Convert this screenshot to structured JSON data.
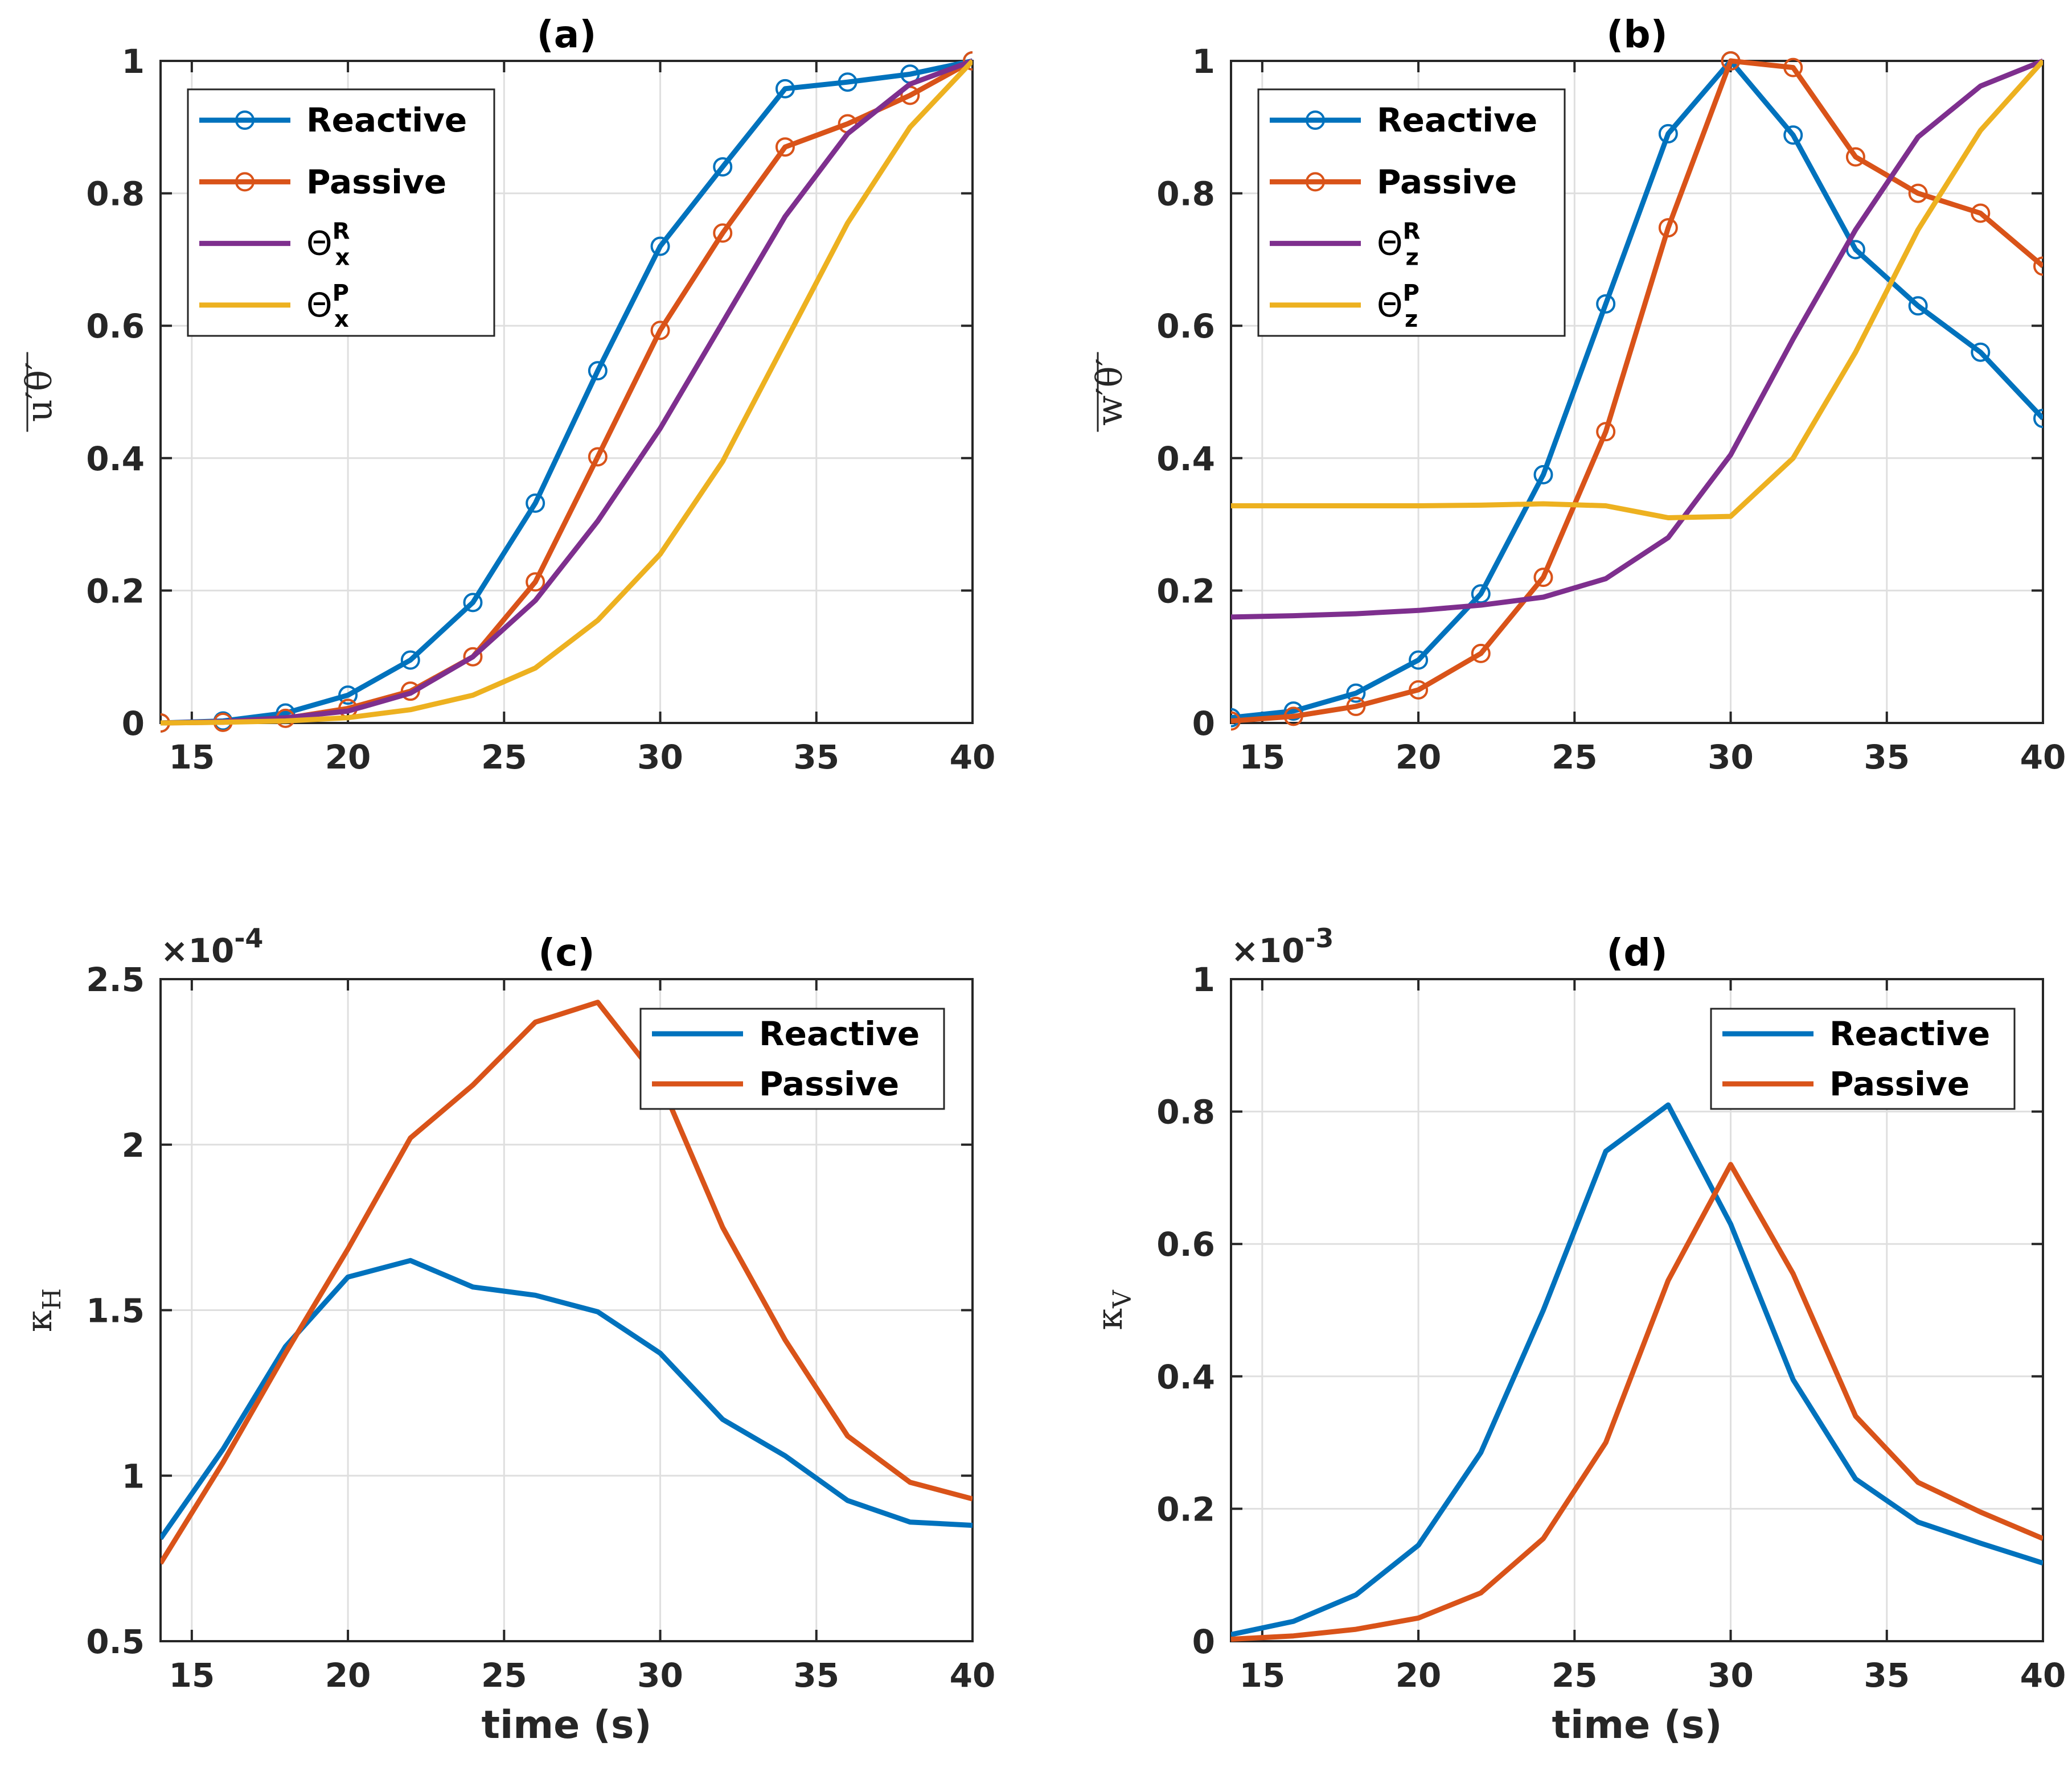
{
  "colors": {
    "reactive": "#0072BD",
    "passive": "#D95319",
    "theta_r": "#7E2F8E",
    "theta_p": "#EDB120",
    "grid": "#DFDFDF",
    "axis": "#262626"
  },
  "chart_data": [
    {
      "type": "line",
      "title": "(a)",
      "xlabel": "",
      "ylabel": "u′θ′ (overbar)",
      "xlim": [
        14,
        40
      ],
      "ylim": [
        0,
        1
      ],
      "xticks": [
        "15",
        "20",
        "25",
        "30",
        "35",
        "40"
      ],
      "yticks": [
        "0",
        "0.2",
        "0.4",
        "0.6",
        "0.8",
        "1"
      ],
      "multiplier": "",
      "legend_position": "top-left",
      "grid": true,
      "x": [
        14,
        16,
        18,
        20,
        22,
        24,
        26,
        28,
        30,
        32,
        34,
        36,
        38,
        40
      ],
      "series": [
        {
          "name": "Reactive",
          "color_key": "reactive",
          "markers": true,
          "values": [
            0,
            0.003,
            0.015,
            0.042,
            0.095,
            0.182,
            0.332,
            0.532,
            0.72,
            0.84,
            0.958,
            0.968,
            0.98,
            1.0
          ]
        },
        {
          "name": "Passive",
          "color_key": "passive",
          "markers": true,
          "values": [
            0,
            0.001,
            0.007,
            0.022,
            0.048,
            0.1,
            0.213,
            0.402,
            0.593,
            0.74,
            0.87,
            0.905,
            0.948,
            1.0
          ]
        },
        {
          "name": "Θ",
          "sub": "x",
          "sup": "R",
          "color_key": "theta_r",
          "markers": false,
          "values": [
            0,
            0.002,
            0.008,
            0.018,
            0.045,
            0.1,
            0.185,
            0.305,
            0.445,
            0.605,
            0.765,
            0.89,
            0.965,
            1.0
          ]
        },
        {
          "name": "Θ",
          "sub": "x",
          "sup": "P",
          "color_key": "theta_p",
          "markers": false,
          "values": [
            0,
            0.001,
            0.003,
            0.008,
            0.02,
            0.042,
            0.083,
            0.155,
            0.255,
            0.395,
            0.575,
            0.755,
            0.9,
            1.0
          ]
        }
      ]
    },
    {
      "type": "line",
      "title": "(b)",
      "xlabel": "",
      "ylabel": "w′θ′ (overbar)",
      "xlim": [
        14,
        40
      ],
      "ylim": [
        0,
        1
      ],
      "xticks": [
        "15",
        "20",
        "25",
        "30",
        "35",
        "40"
      ],
      "yticks": [
        "0",
        "0.2",
        "0.4",
        "0.6",
        "0.8",
        "1"
      ],
      "multiplier": "",
      "legend_position": "top-left",
      "grid": true,
      "x": [
        14,
        16,
        18,
        20,
        22,
        24,
        26,
        28,
        30,
        32,
        34,
        36,
        38,
        40
      ],
      "series": [
        {
          "name": "Reactive",
          "color_key": "reactive",
          "markers": true,
          "values": [
            0.008,
            0.018,
            0.045,
            0.095,
            0.195,
            0.375,
            0.633,
            0.89,
            1.0,
            0.888,
            0.715,
            0.63,
            0.56,
            0.46
          ]
        },
        {
          "name": "Passive",
          "color_key": "passive",
          "markers": true,
          "values": [
            0.003,
            0.01,
            0.025,
            0.05,
            0.105,
            0.22,
            0.44,
            0.748,
            1.0,
            0.99,
            0.855,
            0.8,
            0.77,
            0.69
          ]
        },
        {
          "name": "Θ",
          "sub": "z",
          "sup": "R",
          "color_key": "theta_r",
          "markers": false,
          "values": [
            0.16,
            0.162,
            0.165,
            0.17,
            0.178,
            0.19,
            0.218,
            0.28,
            0.405,
            0.58,
            0.745,
            0.885,
            0.962,
            1.0
          ]
        },
        {
          "name": "Θ",
          "sub": "z",
          "sup": "P",
          "color_key": "theta_p",
          "markers": false,
          "values": [
            0.328,
            0.328,
            0.328,
            0.328,
            0.329,
            0.331,
            0.328,
            0.31,
            0.312,
            0.4,
            0.56,
            0.745,
            0.895,
            1.0
          ]
        }
      ]
    },
    {
      "type": "line",
      "title": "(c)",
      "xlabel": "time (s)",
      "ylabel": "κH",
      "xlim": [
        14,
        40
      ],
      "ylim": [
        0.5,
        2.5
      ],
      "xticks": [
        "15",
        "20",
        "25",
        "30",
        "35",
        "40"
      ],
      "yticks": [
        "0.5",
        "1",
        "1.5",
        "2",
        "2.5"
      ],
      "multiplier": "×10-4",
      "legend_position": "top-right",
      "grid": true,
      "x": [
        14,
        16,
        18,
        20,
        22,
        24,
        26,
        28,
        30,
        32,
        34,
        36,
        38,
        40
      ],
      "series": [
        {
          "name": "Reactive",
          "color_key": "reactive",
          "markers": false,
          "values": [
            0.81,
            1.08,
            1.39,
            1.6,
            1.65,
            1.57,
            1.545,
            1.495,
            1.37,
            1.17,
            1.06,
            0.925,
            0.86,
            0.85
          ]
        },
        {
          "name": "Passive",
          "color_key": "passive",
          "markers": false,
          "values": [
            0.735,
            1.04,
            1.37,
            1.685,
            2.02,
            2.18,
            2.37,
            2.43,
            2.19,
            1.75,
            1.41,
            1.12,
            0.98,
            0.93
          ]
        }
      ]
    },
    {
      "type": "line",
      "title": "(d)",
      "xlabel": "time (s)",
      "ylabel": "κV",
      "xlim": [
        14,
        40
      ],
      "ylim": [
        0,
        1
      ],
      "xticks": [
        "15",
        "20",
        "25",
        "30",
        "35",
        "40"
      ],
      "yticks": [
        "0",
        "0.2",
        "0.4",
        "0.6",
        "0.8",
        "1"
      ],
      "multiplier": "×10-3",
      "legend_position": "top-right",
      "grid": true,
      "x": [
        14,
        16,
        18,
        20,
        22,
        24,
        26,
        28,
        30,
        32,
        34,
        36,
        38,
        40
      ],
      "series": [
        {
          "name": "Reactive",
          "color_key": "reactive",
          "markers": false,
          "values": [
            0.01,
            0.03,
            0.07,
            0.145,
            0.285,
            0.5,
            0.74,
            0.81,
            0.63,
            0.395,
            0.245,
            0.18,
            0.148,
            0.118
          ]
        },
        {
          "name": "Passive",
          "color_key": "passive",
          "markers": false,
          "values": [
            0.003,
            0.008,
            0.018,
            0.035,
            0.073,
            0.155,
            0.3,
            0.545,
            0.72,
            0.555,
            0.34,
            0.24,
            0.195,
            0.155
          ]
        }
      ]
    }
  ]
}
